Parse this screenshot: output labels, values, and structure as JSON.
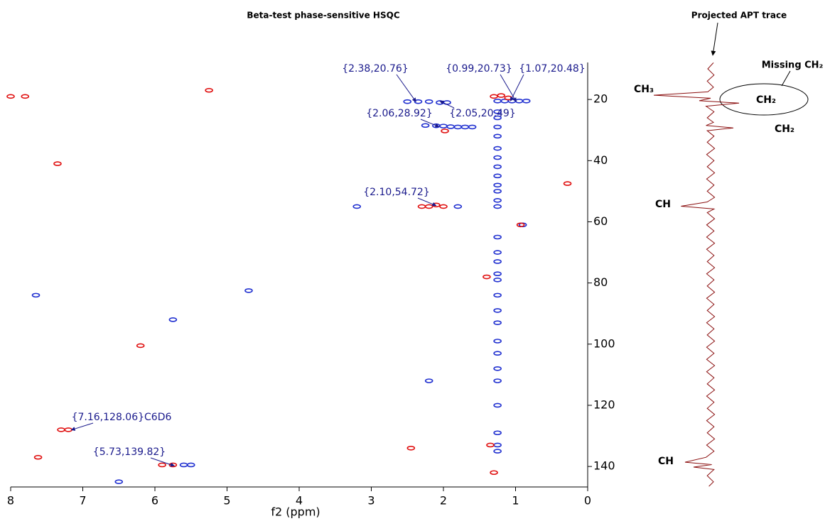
{
  "chart_data": {
    "type": "contour-scatter",
    "title": "Beta-test phase-sensitive HSQC",
    "x_label": "f2 (ppm)",
    "xlim": [
      8,
      0
    ],
    "xticks": [
      8,
      7,
      6,
      5,
      4,
      3,
      2,
      1,
      0
    ],
    "ylim": [
      7.9,
      146.7
    ],
    "yticks": [
      20,
      40,
      60,
      80,
      100,
      120,
      140
    ],
    "series": [
      {
        "color": "#1f2fd0",
        "x": [
          2.5,
          2.35,
          2.2,
          2.05,
          1.95,
          1.25,
          1.15,
          1.05,
          0.95,
          0.85,
          2.25,
          2.1,
          2.0,
          1.9,
          1.8,
          1.7,
          1.6,
          1.25,
          1.25,
          1.25,
          1.25,
          1.25,
          1.25,
          1.25,
          1.25,
          1.25,
          1.25,
          1.25,
          1.25,
          1.25,
          1.25,
          1.25,
          1.25,
          1.25,
          1.25,
          1.25,
          1.25,
          1.25,
          1.25,
          1.25,
          1.25,
          1.25,
          1.25,
          1.25,
          1.25,
          1.8,
          3.2,
          2.2,
          5.6,
          5.5,
          4.7,
          5.75,
          7.65,
          6.5,
          0.9
        ],
        "y": [
          20.7,
          20.7,
          20.7,
          21,
          21,
          20.5,
          20.5,
          20.5,
          20.5,
          20.5,
          28.5,
          28.6,
          28.7,
          28.9,
          29,
          29,
          29,
          29,
          26,
          24,
          32,
          36,
          39,
          42,
          45,
          48,
          50,
          53,
          55,
          65,
          70,
          73,
          77,
          79,
          84,
          89,
          93,
          99,
          103,
          108,
          112,
          120,
          129,
          133,
          135,
          55,
          55,
          112,
          139.5,
          139.5,
          82.5,
          92,
          84,
          145,
          61
        ]
      },
      {
        "color": "#e01010",
        "x": [
          1.2,
          1.3,
          1.1,
          2.1,
          2.2,
          2.3,
          2.0,
          7.2,
          7.3,
          5.9,
          5.75,
          5.25,
          7.35,
          6.2,
          8,
          7.8,
          0.28,
          1.35,
          1.3,
          2.45,
          1.4,
          1.98,
          7.62,
          0.93
        ],
        "y": [
          18.7,
          19,
          19.5,
          54.5,
          55,
          55,
          55,
          128,
          128,
          139.5,
          139.5,
          17,
          41,
          100.5,
          19,
          19,
          47.5,
          133,
          142,
          134,
          78,
          30.3,
          137,
          61
        ]
      }
    ],
    "annotations": [
      {
        "text": "{2.38,20.76}",
        "x": 2.38,
        "y": 20.76
      },
      {
        "text": "{0.99,20.73}",
        "x": 0.99,
        "y": 20.73
      },
      {
        "text": "{1.07,20.48}",
        "x": 1.07,
        "y": 20.48
      },
      {
        "text": "{2.06,28.92}",
        "x": 2.06,
        "y": 28.92
      },
      {
        "text": "{2.05,20.49}",
        "x": 2.05,
        "y": 20.49
      },
      {
        "text": "{2.10,54.72}",
        "x": 2.1,
        "y": 54.72
      },
      {
        "text": "{7.16,128.06}C6D6",
        "x": 7.16,
        "y": 128.06
      },
      {
        "text": "{5.73,139.82}",
        "x": 5.73,
        "y": 139.82
      }
    ],
    "trace": {
      "title": "Projected APT trace",
      "color": "#8b1010",
      "xlim": [
        -125,
        62.5
      ],
      "y": [
        8,
        10,
        12,
        14,
        16,
        17.5,
        18.6,
        19.6,
        20.4,
        21.2,
        22.2,
        24,
        26,
        27.5,
        28.5,
        29.3,
        30.2,
        32,
        34,
        36,
        38,
        40,
        42,
        44,
        46,
        48,
        50,
        52,
        53.5,
        54.9,
        55.8,
        57,
        59,
        61,
        63,
        65,
        67,
        69,
        71,
        73,
        75,
        77,
        79,
        81,
        83,
        85,
        87,
        89,
        91,
        93,
        95,
        97,
        99,
        101,
        103,
        105,
        107,
        109,
        111,
        113,
        115,
        117,
        119,
        121,
        123,
        125,
        127,
        129,
        131,
        133,
        135,
        137,
        138.6,
        139.4,
        140.2,
        141,
        143,
        145,
        146.5
      ],
      "values": [
        5,
        -5,
        6,
        -6,
        5,
        -5,
        -100,
        0,
        -20,
        50,
        -8,
        6,
        -6,
        5,
        -8,
        40,
        -6,
        6,
        -6,
        7,
        -7,
        6,
        -6,
        7,
        -7,
        6,
        -6,
        7,
        -6,
        -52,
        6,
        -6,
        7,
        -7,
        6,
        -7,
        7,
        -7,
        6,
        -6,
        7,
        -7,
        6,
        -6,
        7,
        -7,
        6,
        -6,
        7,
        -7,
        6,
        -6,
        7,
        -7,
        6,
        -7,
        7,
        -7,
        6,
        -6,
        7,
        -7,
        6,
        -6,
        7,
        -7,
        6,
        -6,
        7,
        -7,
        6,
        -8,
        -45,
        2,
        -30,
        6,
        -6,
        5,
        -3
      ],
      "peak_labels": [
        "CH₃",
        "CH₂",
        "CH₂",
        "CH",
        "CH"
      ],
      "missing_label": "Missing CH₂"
    }
  }
}
